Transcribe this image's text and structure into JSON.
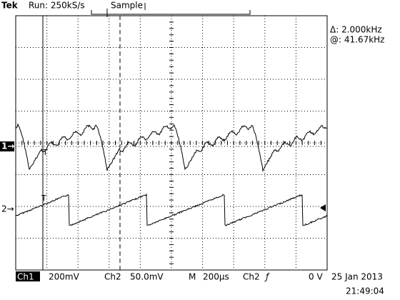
{
  "header": {
    "brand": "Tek",
    "status": "Run: 250kS/s",
    "mode": "Sample"
  },
  "readout": {
    "delta": "Δ: 2.000kHz",
    "at": "@: 41.67kHz"
  },
  "markers": {
    "ch1": "1→",
    "ch2": "2→",
    "cursor_t1": "T",
    "cursor_t2": "T"
  },
  "footer": {
    "ch1_label": "Ch1",
    "ch1_scale": "200mV",
    "ch2_label": "Ch2",
    "ch2_scale": "50.0mV",
    "time_label": "M",
    "time_scale": "200µs",
    "trigger_source": "Ch2",
    "trigger_slope": "ƒ",
    "trigger_level": "0 V",
    "date": "25 Jan 2013",
    "time": "21:49:04"
  }
}
